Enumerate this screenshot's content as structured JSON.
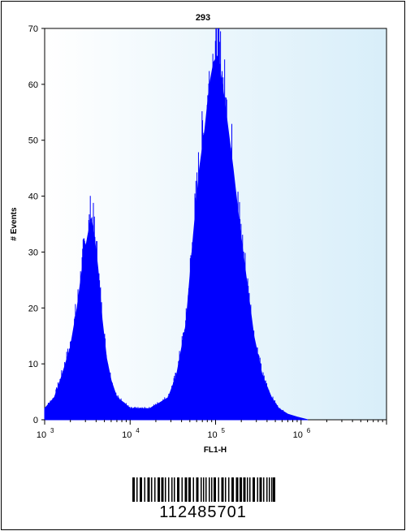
{
  "chart_data": {
    "type": "histogram",
    "title": "293",
    "xlabel": "FL1-H",
    "ylabel": "# Events",
    "x_scale": "log",
    "xlim": [
      1000,
      10000000
    ],
    "ylim": [
      0,
      70
    ],
    "x_ticks": [
      {
        "value": 1000,
        "base": "10",
        "exp": "3"
      },
      {
        "value": 10000,
        "base": "10",
        "exp": "4"
      },
      {
        "value": 100000,
        "base": "10",
        "exp": "5"
      },
      {
        "value": 1000000,
        "base": "10",
        "exp": "6"
      }
    ],
    "y_ticks": [
      "0",
      "10",
      "20",
      "30",
      "40",
      "50",
      "60",
      "70"
    ],
    "fill_color": "#0000ff",
    "background_color": "#ddf1fb",
    "points": [
      [
        1000,
        2
      ],
      [
        1300,
        4
      ],
      [
        1600,
        8
      ],
      [
        2000,
        13
      ],
      [
        2400,
        20
      ],
      [
        2800,
        28
      ],
      [
        3200,
        33
      ],
      [
        3500,
        36
      ],
      [
        3800,
        33
      ],
      [
        4200,
        27
      ],
      [
        4700,
        18
      ],
      [
        5300,
        11
      ],
      [
        6000,
        7
      ],
      [
        7000,
        4
      ],
      [
        8500,
        3
      ],
      [
        10000,
        2
      ],
      [
        13000,
        2
      ],
      [
        17000,
        2
      ],
      [
        22000,
        3
      ],
      [
        28000,
        4
      ],
      [
        35000,
        8
      ],
      [
        45000,
        17
      ],
      [
        55000,
        33
      ],
      [
        65000,
        45
      ],
      [
        75000,
        52
      ],
      [
        85000,
        60
      ],
      [
        95000,
        64
      ],
      [
        105000,
        65
      ],
      [
        120000,
        60
      ],
      [
        140000,
        52
      ],
      [
        160000,
        45
      ],
      [
        190000,
        35
      ],
      [
        230000,
        25
      ],
      [
        280000,
        15
      ],
      [
        350000,
        8
      ],
      [
        450000,
        4
      ],
      [
        550000,
        2
      ],
      [
        700000,
        1
      ],
      [
        900000,
        0.5
      ],
      [
        1200000,
        0
      ]
    ]
  },
  "catalog_number": "112485701"
}
